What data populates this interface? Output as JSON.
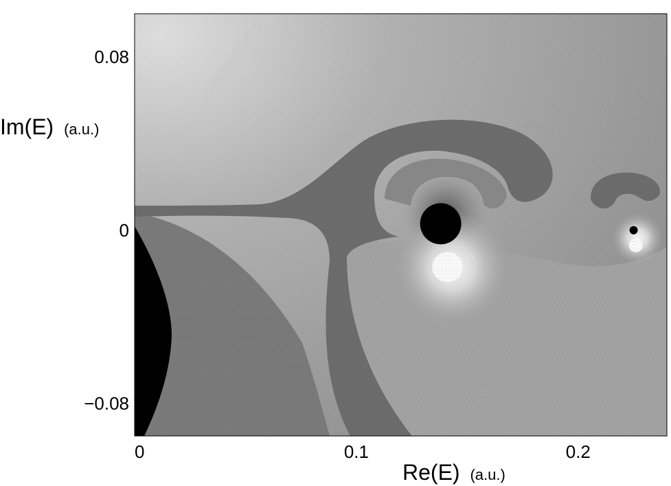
{
  "chart_data": {
    "type": "heatmap",
    "title": "",
    "xlabel": "Re(E)",
    "xlabel_unit": "(a.u.)",
    "ylabel": "Im(E)",
    "ylabel_unit": "(a.u.)",
    "xlim": [
      0,
      0.24
    ],
    "ylim": [
      -0.095,
      0.1
    ],
    "x_ticks": [
      {
        "value": 0,
        "label": "0"
      },
      {
        "value": 0.1,
        "label": "0.1"
      },
      {
        "value": 0.2,
        "label": "0.2"
      }
    ],
    "y_ticks": [
      {
        "value": 0.08,
        "label": "0.08"
      },
      {
        "value": 0,
        "label": "0"
      },
      {
        "value": -0.08,
        "label": "−0.08"
      }
    ],
    "grid": false,
    "colormap": "grayscale",
    "features": [
      {
        "kind": "pole",
        "re": 0.138,
        "im": 0.003,
        "shade": "#000000"
      },
      {
        "kind": "zero",
        "re": 0.141,
        "im": -0.017,
        "shade": "#ffffff"
      },
      {
        "kind": "pole",
        "re": 0.225,
        "im": 0.0,
        "shade": "#000000"
      },
      {
        "kind": "zero",
        "re": 0.226,
        "im": -0.007,
        "shade": "#ffffff"
      }
    ],
    "colors": {
      "band": "#6e6e6e",
      "bright": "#e8e8e8",
      "dark": "#000000"
    }
  }
}
